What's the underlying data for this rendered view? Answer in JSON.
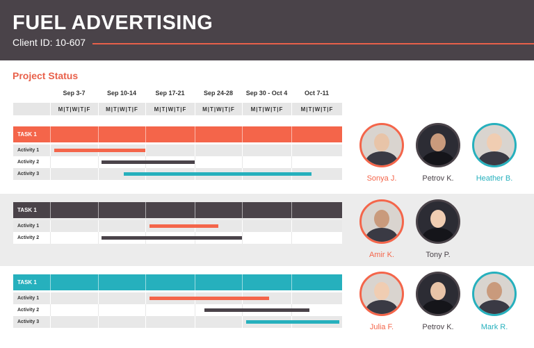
{
  "header": {
    "title": "FUEL ADVERTISING",
    "client_id": "Client ID: 10-607"
  },
  "section_title": "Project Status",
  "weeks": [
    "Sep 3-7",
    "Sep 10-14",
    "Sep 17-21",
    "Sep 24-28",
    "Sep 30 - Oct 4",
    "Oct 7-11"
  ],
  "days_label": "M|T|W|T|F",
  "colors": {
    "orange": "#f4654a",
    "dark": "#4a4349",
    "teal": "#26b0bd",
    "accent_line": "#e8604a"
  },
  "tasks": [
    {
      "label": "TASK 1",
      "color": "orange",
      "activities": [
        {
          "label": "Activity 1",
          "bar_color": "orange",
          "start_week": 0.08,
          "end_week": 2.0
        },
        {
          "label": "Activity 2",
          "bar_color": "dark",
          "start_week": 1.08,
          "end_week": 3.0
        },
        {
          "label": "Activity 3",
          "bar_color": "teal",
          "start_week": 1.55,
          "end_week": 5.4
        }
      ],
      "people": [
        {
          "name": "Sonya J.",
          "ring": "orange",
          "name_color": "orange"
        },
        {
          "name": "Petrov K.",
          "ring": "dark",
          "name_color": "dark"
        },
        {
          "name": "Heather B.",
          "ring": "teal",
          "name_color": "teal"
        }
      ]
    },
    {
      "label": "TASK 1",
      "color": "dark",
      "activities": [
        {
          "label": "Activity 1",
          "bar_color": "orange",
          "start_week": 2.08,
          "end_week": 3.5
        },
        {
          "label": "Activity 2",
          "bar_color": "dark",
          "start_week": 1.08,
          "end_week": 4.0
        }
      ],
      "people": [
        {
          "name": "Amir K.",
          "ring": "orange",
          "name_color": "orange"
        },
        {
          "name": "Tony P.",
          "ring": "dark",
          "name_color": "dark"
        }
      ]
    },
    {
      "label": "TASK 1",
      "color": "teal",
      "activities": [
        {
          "label": "Activity 1",
          "bar_color": "orange",
          "start_week": 2.08,
          "end_week": 4.55
        },
        {
          "label": "Activity 2",
          "bar_color": "dark",
          "start_week": 3.2,
          "end_week": 5.35
        },
        {
          "label": "Activity 3",
          "bar_color": "teal",
          "start_week": 4.08,
          "end_week": 5.95
        }
      ],
      "people": [
        {
          "name": "Julia F.",
          "ring": "orange",
          "name_color": "orange"
        },
        {
          "name": "Petrov K.",
          "ring": "dark",
          "name_color": "dark"
        },
        {
          "name": "Mark R.",
          "ring": "teal",
          "name_color": "teal"
        }
      ]
    }
  ]
}
